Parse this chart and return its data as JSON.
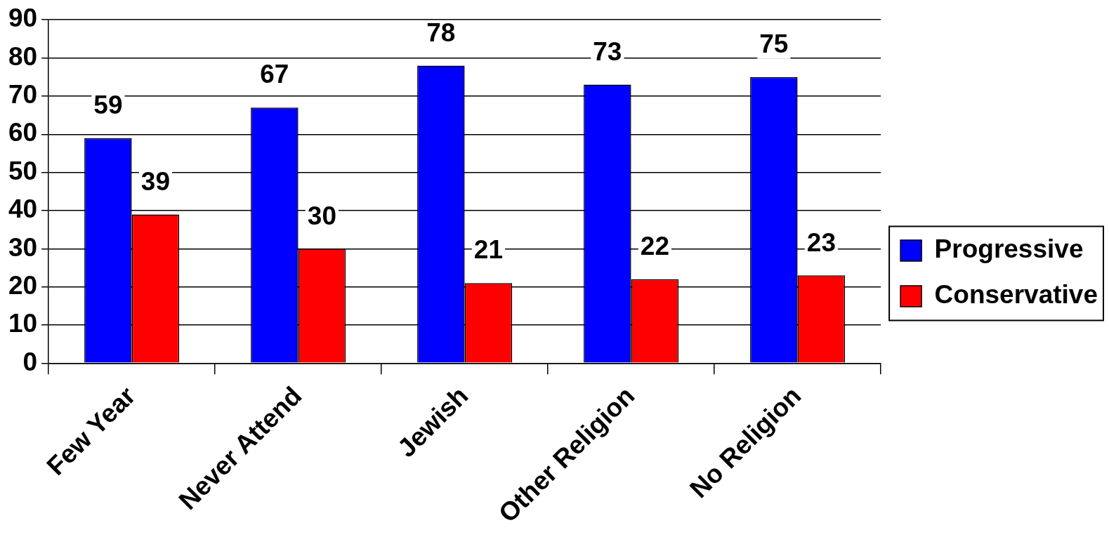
{
  "chart_data": {
    "type": "bar",
    "categories": [
      "Few Year",
      "Never Attend",
      "Jewish",
      "Other Religion",
      "No Religion"
    ],
    "series": [
      {
        "name": "Progressive",
        "color": "#0000ff",
        "values": [
          59,
          67,
          78,
          73,
          75
        ]
      },
      {
        "name": "Conservative",
        "color": "#ff0000",
        "values": [
          39,
          30,
          21,
          22,
          23
        ]
      }
    ],
    "ylim": [
      0,
      90
    ],
    "yticks": [
      0,
      10,
      20,
      30,
      40,
      50,
      60,
      70,
      80,
      90
    ],
    "grid": "y",
    "legend": "right",
    "data_labels": true
  }
}
